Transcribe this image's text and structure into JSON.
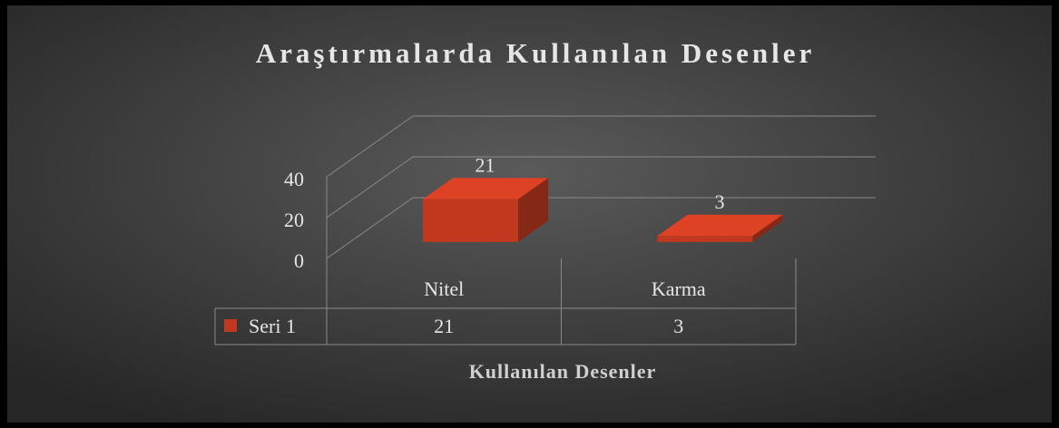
{
  "chart_data": {
    "type": "bar3d",
    "title": "Araştırmalarda Kullanılan Desenler",
    "categories": [
      "Nitel",
      "Karma"
    ],
    "series": [
      {
        "name": "Seri 1",
        "color": "#c0391f",
        "values": [
          21,
          3
        ]
      }
    ],
    "ylim": [
      0,
      40
    ],
    "yticks": [
      0,
      20,
      40
    ],
    "grid": true,
    "x_label": "Kullanılan Desenler",
    "data_table": true
  }
}
